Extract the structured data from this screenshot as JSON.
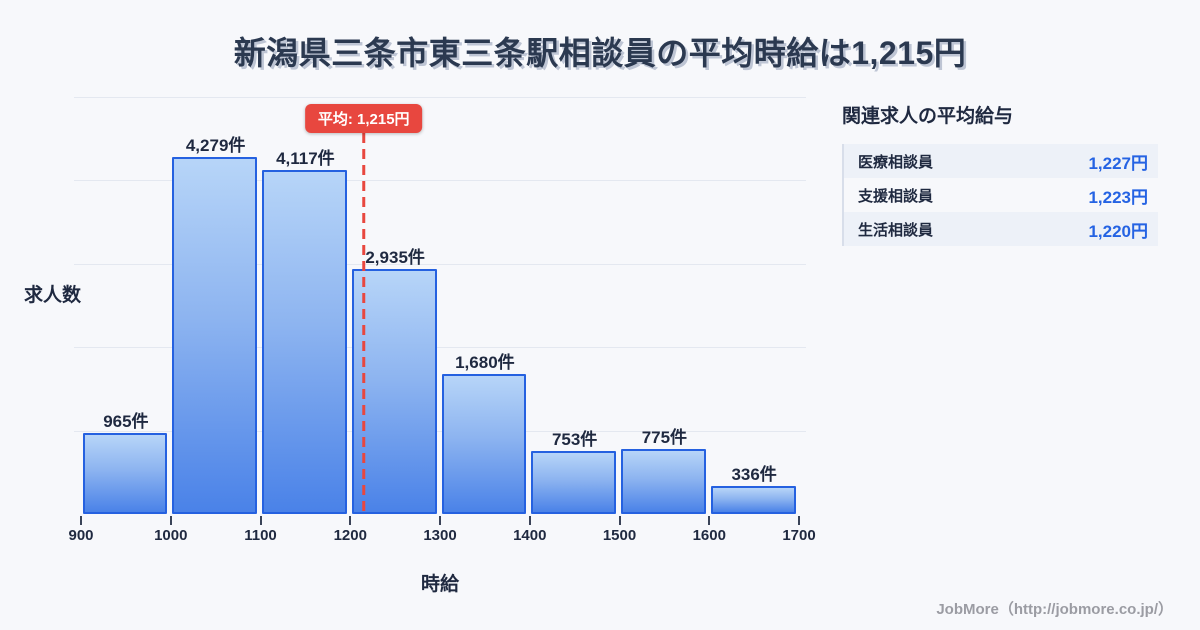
{
  "title": "新潟県三条市東三条駅相談員の平均時給は1,215円",
  "chart_data": {
    "type": "bar",
    "subtype": "histogram",
    "title": "新潟県三条市東三条駅相談員の平均時給は1,215円",
    "xlabel": "時給",
    "ylabel": "求人数",
    "bin_edges": [
      900,
      1000,
      1100,
      1200,
      1300,
      1400,
      1500,
      1600,
      1700
    ],
    "x_ticks": [
      "900",
      "1000",
      "1100",
      "1200",
      "1300",
      "1400",
      "1500",
      "1600",
      "1700"
    ],
    "values": [
      965,
      4279,
      4117,
      2935,
      1680,
      753,
      775,
      336
    ],
    "value_labels": [
      "965件",
      "4,279件",
      "4,117件",
      "2,935件",
      "1,680件",
      "753件",
      "775件",
      "336件"
    ],
    "xlim": [
      900,
      1700
    ],
    "ylim": [
      0,
      5000
    ],
    "grid_step": 1000,
    "grid": "horizontal-only",
    "mean": 1215,
    "mean_label": "平均: 1,215円",
    "legend": "none"
  },
  "related_panel": {
    "heading": "関連求人の平均給与",
    "rows": [
      {
        "label": "医療相談員",
        "value": "1,227円"
      },
      {
        "label": "支援相談員",
        "value": "1,223円"
      },
      {
        "label": "生活相談員",
        "value": "1,220円"
      }
    ]
  },
  "footer": {
    "credit": "JobMore（http://jobmore.co.jp/）"
  },
  "colors": {
    "background": "#f7f8fb",
    "title_text": "#2b3950",
    "text_dark": "#1f2940",
    "bar_border": "#2561e0",
    "bar_gradient_top": "#b7d5f8",
    "bar_gradient_bottom": "#4a82e8",
    "gridline": "#e4e8f0",
    "mean_red": "#e8473f",
    "value_blue": "#2563e3",
    "panel_row_shaded": "#edf1f8",
    "footer_gray": "#9b9ca3"
  }
}
